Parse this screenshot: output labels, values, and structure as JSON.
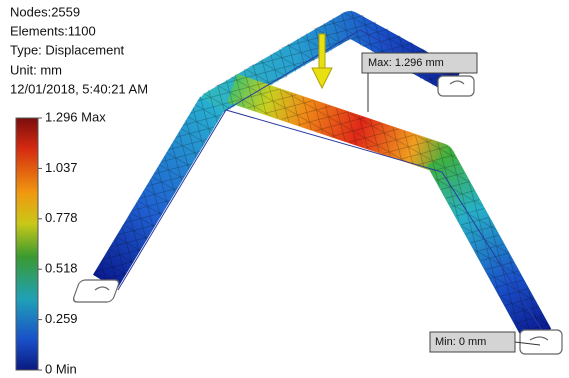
{
  "info": {
    "nodes": "Nodes:2559",
    "elements": "Elements:1100",
    "type": "Type: Displacement",
    "unit": "Unit: mm",
    "date": "12/01/2018, 5:40:21 AM"
  },
  "legend": {
    "labels": [
      "1.296 Max",
      "1.037",
      "0.778",
      "0.518",
      "0.259",
      "0 Min"
    ]
  },
  "callouts": {
    "max": "Max: 1.296 mm",
    "min": "Min: 0 mm"
  }
}
